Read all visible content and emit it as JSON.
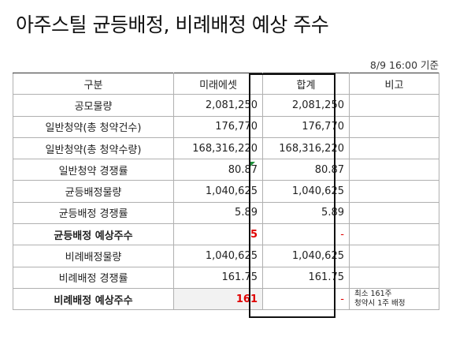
{
  "title": "아주스틸 균등배정, 비례배정 예상 주수",
  "as_of": "8/9 16:00 기준",
  "header": {
    "label": "구분",
    "col_a": "미래에셋",
    "col_b": "합계",
    "col_note": "비고"
  },
  "rows": [
    {
      "label": "공모물량",
      "a": "2,081,250",
      "b": "2,081,250",
      "note1": "",
      "note2": ""
    },
    {
      "label": "일반청약(총 청약건수)",
      "a": "176,770",
      "b": "176,770",
      "note1": "",
      "note2": ""
    },
    {
      "label": "일반청약(총 청약수량)",
      "a": "168,316,220",
      "b": "168,316,220",
      "note1": "",
      "note2": ""
    },
    {
      "label": "일반청약 경쟁률",
      "a": "80.87",
      "b": "80.87",
      "note1": "",
      "note2": ""
    },
    {
      "label": "균등배정물량",
      "a": "1,040,625",
      "b": "1,040,625",
      "note1": "",
      "note2": ""
    },
    {
      "label": "균등배정 경쟁률",
      "a": "5.89",
      "b": "5.89",
      "note1": "",
      "note2": ""
    },
    {
      "label": "균등배정 예상주수",
      "a": "5",
      "b": "-",
      "note1": "",
      "note2": ""
    },
    {
      "label": "비례배정물량",
      "a": "1,040,625",
      "b": "1,040,625",
      "note1": "",
      "note2": ""
    },
    {
      "label": "비례배정 경쟁률",
      "a": "161.75",
      "b": "161.75",
      "note1": "",
      "note2": ""
    },
    {
      "label": "비례배정 예상주수",
      "a": "161",
      "b": "-",
      "note1": "최소 161주",
      "note2": "청약시 1주 배정"
    }
  ],
  "colors": {
    "highlight": "#e00000",
    "shade": "#f2f2f2",
    "border": "#111111",
    "comment_marker": "#1f8f3a"
  }
}
